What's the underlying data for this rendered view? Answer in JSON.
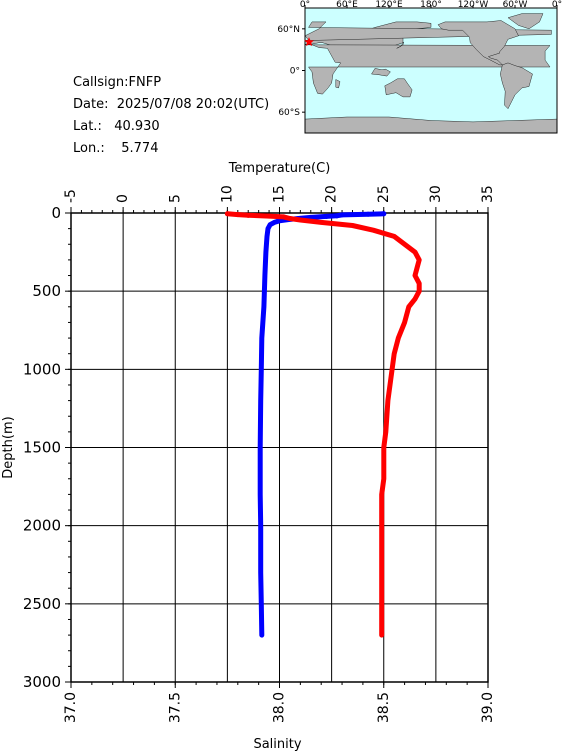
{
  "info": {
    "callsign": "Callsign:FNFP",
    "date": "Date:  2025/07/08 20:02(UTC)",
    "lat": "Lat.:   40.930",
    "lon": "Lon.:    5.774"
  },
  "map": {
    "lon_labels": [
      "0°",
      "60°E",
      "120°E",
      "180°",
      "120°W",
      "60°W",
      "0°"
    ],
    "lat_labels": [
      "60°N",
      "0°",
      "60°S"
    ],
    "ocean_color": "#ccffff",
    "land_color": "#b4b4b4",
    "marker": {
      "lat": 40.93,
      "lon": 5.774,
      "color": "#ff0000"
    }
  },
  "chart_data": {
    "type": "line",
    "ylabel": "Depth(m)",
    "ylim": [
      3000,
      0
    ],
    "y_ticks": [
      0,
      500,
      1000,
      1500,
      2000,
      2500,
      3000
    ],
    "top_axis": {
      "label": "Temperature(C)",
      "range": [
        -5,
        35
      ],
      "ticks": [
        -5,
        0,
        5,
        10,
        15,
        20,
        25,
        30,
        35
      ]
    },
    "bottom_axis": {
      "label": "Salinity",
      "range": [
        37.0,
        39.0
      ],
      "ticks": [
        "37.0",
        "37.5",
        "38.0",
        "38.5",
        "39.0"
      ]
    },
    "grid": true,
    "series": [
      {
        "color": "#0000ff",
        "axis": "top",
        "points": [
          [
            25.0,
            5
          ],
          [
            23.5,
            8
          ],
          [
            21.0,
            12
          ],
          [
            20.5,
            18
          ],
          [
            19.5,
            22
          ],
          [
            18.0,
            28
          ],
          [
            16.8,
            35
          ],
          [
            15.8,
            42
          ],
          [
            15.0,
            50
          ],
          [
            14.5,
            60
          ],
          [
            14.1,
            75
          ],
          [
            13.9,
            100
          ],
          [
            13.8,
            150
          ],
          [
            13.7,
            250
          ],
          [
            13.6,
            400
          ],
          [
            13.5,
            600
          ],
          [
            13.3,
            800
          ],
          [
            13.25,
            1000
          ],
          [
            13.2,
            1200
          ],
          [
            13.15,
            1500
          ],
          [
            13.15,
            1800
          ],
          [
            13.2,
            2000
          ],
          [
            13.2,
            2300
          ],
          [
            13.25,
            2500
          ],
          [
            13.3,
            2700
          ]
        ]
      },
      {
        "color": "#ff0000",
        "axis": "bottom",
        "points": [
          [
            37.75,
            5
          ],
          [
            37.8,
            10
          ],
          [
            37.85,
            15
          ],
          [
            37.95,
            20
          ],
          [
            38.02,
            25
          ],
          [
            38.05,
            35
          ],
          [
            38.1,
            45
          ],
          [
            38.2,
            60
          ],
          [
            38.35,
            80
          ],
          [
            38.45,
            110
          ],
          [
            38.55,
            150
          ],
          [
            38.6,
            200
          ],
          [
            38.65,
            250
          ],
          [
            38.67,
            300
          ],
          [
            38.66,
            350
          ],
          [
            38.65,
            400
          ],
          [
            38.67,
            450
          ],
          [
            38.67,
            500
          ],
          [
            38.65,
            550
          ],
          [
            38.62,
            600
          ],
          [
            38.6,
            700
          ],
          [
            38.57,
            800
          ],
          [
            38.55,
            900
          ],
          [
            38.54,
            1000
          ],
          [
            38.52,
            1200
          ],
          [
            38.51,
            1400
          ],
          [
            38.5,
            1500
          ],
          [
            38.5,
            1700
          ],
          [
            38.49,
            1800
          ],
          [
            38.49,
            2000
          ],
          [
            38.49,
            2200
          ],
          [
            38.49,
            2400
          ],
          [
            38.49,
            2500
          ],
          [
            38.49,
            2700
          ]
        ]
      }
    ]
  }
}
